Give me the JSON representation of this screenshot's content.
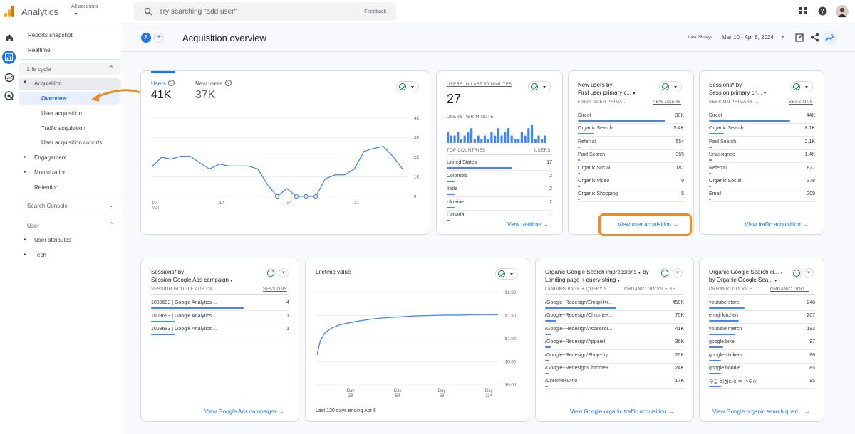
{
  "app": {
    "title": "Analytics",
    "account_label": "All accounts"
  },
  "search": {
    "placeholder": "Try searching \"add user\"",
    "feedback": "Feedback"
  },
  "sidebar": {
    "reports_snapshot": "Reports snapshot",
    "realtime": "Realtime",
    "lifecycle": "Life cycle",
    "acquisition": "Acquisition",
    "overview": "Overview",
    "user_acquisition": "User acquisition",
    "traffic_acquisition": "Traffic acquisition",
    "user_acquisition_cohorts": "User acquisition cohorts",
    "engagement": "Engagement",
    "monetization": "Monetization",
    "retention": "Retention",
    "search_console": "Search Console",
    "user": "User",
    "user_attributes": "User attributes",
    "tech": "Tech"
  },
  "header": {
    "avatar_letter": "A",
    "title": "Acquisition overview",
    "period_label": "Last 28 days",
    "date_range": "Mar 10 - Apr 6, 2024"
  },
  "users_card": {
    "users_label": "Users",
    "users_value": "41K",
    "new_users_label": "New users",
    "new_users_value": "37K",
    "y_ticks": [
      "4K",
      "3K",
      "2K",
      "1K",
      "0"
    ],
    "x_ticks": [
      "10",
      "17",
      "24",
      "31"
    ],
    "x_month": "Mar",
    "chart_data": {
      "type": "line",
      "x": [
        "Mar 10",
        "Mar 11",
        "Mar 12",
        "Mar 13",
        "Mar 14",
        "Mar 15",
        "Mar 16",
        "Mar 17",
        "Mar 18",
        "Mar 19",
        "Mar 20",
        "Mar 21",
        "Mar 22",
        "Mar 23",
        "Mar 24",
        "Mar 25",
        "Mar 26",
        "Mar 27",
        "Mar 28",
        "Mar 29",
        "Mar 30",
        "Mar 31",
        "Apr 1",
        "Apr 2",
        "Apr 3",
        "Apr 4",
        "Apr 5"
      ],
      "series": [
        {
          "name": "Users",
          "values": [
            1500,
            2000,
            1900,
            2050,
            2050,
            1700,
            1400,
            1650,
            1550,
            1550,
            1550,
            1400,
            600,
            0,
            400,
            0,
            0,
            0,
            900,
            1100,
            1100,
            1400,
            2300,
            2450,
            2550,
            2050,
            1400
          ]
        }
      ],
      "ylim": [
        0,
        4000
      ]
    }
  },
  "realtime_card": {
    "heading": "USERS IN LAST 30 MINUTES",
    "value": "27",
    "per_minute": "USERS PER MINUTE",
    "per_minute_bars": [
      3,
      2,
      2,
      3,
      1,
      2,
      3,
      4,
      1,
      2,
      1,
      2,
      1,
      3,
      2,
      4,
      2,
      3,
      4,
      2,
      1,
      1,
      3,
      2,
      4,
      5,
      1,
      2,
      1,
      2
    ],
    "countries_label": "TOP COUNTRIES",
    "users_label": "USERS",
    "rows": [
      {
        "label": "United States",
        "value": "17"
      },
      {
        "label": "Colombia",
        "value": "2"
      },
      {
        "label": "India",
        "value": "2"
      },
      {
        "label": "Ukraine",
        "value": "2"
      },
      {
        "label": "Canada",
        "value": "1"
      }
    ],
    "link": "View realtime"
  },
  "newusers_card": {
    "title1": "New users by",
    "title2": "First user primary c...",
    "col1": "FIRST USER PRIMA...",
    "col2": "NEW USERS",
    "rows": [
      {
        "label": "Direct",
        "value": "30K"
      },
      {
        "label": "Organic Search",
        "value": "5.4K"
      },
      {
        "label": "Referral",
        "value": "554"
      },
      {
        "label": "Paid Search",
        "value": "365"
      },
      {
        "label": "Organic Social",
        "value": "187"
      },
      {
        "label": "Organic Video",
        "value": "9"
      },
      {
        "label": "Organic Shopping",
        "value": "5"
      }
    ],
    "link": "View user acquisition"
  },
  "sessions_card": {
    "title1": "Sessions* by",
    "title2": "Session primary ch...",
    "col1": "SESSION PRIMARY ...",
    "col2": "SESSIONS",
    "rows": [
      {
        "label": "Direct",
        "value": "44K"
      },
      {
        "label": "Organic Search",
        "value": "8.1K"
      },
      {
        "label": "Paid Search",
        "value": "2.1K"
      },
      {
        "label": "Unassigned",
        "value": "1.4K"
      },
      {
        "label": "Referral",
        "value": "827"
      },
      {
        "label": "Organic Social",
        "value": "378"
      },
      {
        "label": "Email",
        "value": "209"
      }
    ],
    "link": "View traffic acquisition"
  },
  "ads_card": {
    "title1": "Sessions* by",
    "title2": "Session Google Ads campaign",
    "col1": "SESSION GOOGLE ADS CA...",
    "col2": "SESSIONS",
    "rows": [
      {
        "label": "1009693 | Google Analytics ...",
        "value": "4"
      },
      {
        "label": "1009693 | Google Analytics ...",
        "value": "1"
      },
      {
        "label": "1009693 | Google Analytics ...",
        "value": "1"
      }
    ],
    "link": "View Google Ads campaigns"
  },
  "ltv_card": {
    "title": "Lifetime value",
    "y_ticks": [
      "$2.00",
      "$1.50",
      "$1.00",
      "$0.50",
      "$0.00"
    ],
    "x_ticks": [
      [
        "Day",
        "23"
      ],
      [
        "Day",
        "54"
      ],
      [
        "Day",
        "83"
      ],
      [
        "Day",
        "114"
      ]
    ],
    "footer": "Last 120 days ending Apr 6",
    "chart_data": {
      "type": "line",
      "x": [
        1,
        3,
        6,
        10,
        15,
        20,
        28,
        36,
        45,
        55,
        65,
        75,
        85,
        95,
        105,
        115,
        120
      ],
      "series": [
        {
          "name": "Lifetime value",
          "values": [
            0.65,
            0.95,
            1.12,
            1.22,
            1.29,
            1.33,
            1.38,
            1.42,
            1.45,
            1.47,
            1.49,
            1.5,
            1.51,
            1.51,
            1.52,
            1.52,
            1.52
          ]
        }
      ],
      "ylim": [
        0,
        2.0
      ]
    }
  },
  "organic_card": {
    "title1": "Organic Google Search impressions",
    "title1_suffix": "by",
    "title2": "Landing page + query string",
    "col1": "LANDING PAGE + QUERY S...",
    "col2": "ORGANIC GOOGLE SE...",
    "rows": [
      {
        "label": "/Google+Redesign/Emoji+Ki...",
        "value": "458K"
      },
      {
        "label": "/Google+Redesign/Chrome+...",
        "value": "75K"
      },
      {
        "label": "/Google+Redesign/Accessor...",
        "value": "41K"
      },
      {
        "label": "/Google+Redesign/Apparel",
        "value": "36K"
      },
      {
        "label": "/Google+Redesign/Shop+by...",
        "value": "26K"
      },
      {
        "label": "/Google+Redesign/Chrome+...",
        "value": "24K"
      },
      {
        "label": "/Chrome+Dino",
        "value": "17K"
      }
    ],
    "link": "View Google organic traffic acquisition"
  },
  "clicks_card": {
    "title1": "Organic Google Search cl...",
    "title2": "by Organic Google Sea...",
    "col1": "ORGANIC GOOGLE ...",
    "col2": "ORGANIC GOO...",
    "rows": [
      {
        "label": "youtube store",
        "value": "248"
      },
      {
        "label": "emoji kitchen",
        "value": "207"
      },
      {
        "label": "youtube merch",
        "value": "183"
      },
      {
        "label": "google bike",
        "value": "97"
      },
      {
        "label": "google stickers",
        "value": "86"
      },
      {
        "label": "google hoodie",
        "value": "85"
      },
      {
        "label": "구글 머천다이즈 스토어",
        "value": "85"
      }
    ],
    "link": "View Google organic search queri..."
  },
  "colors": {
    "accent": "#1a73e8",
    "highlight": "#f28b1c",
    "chart_blue": "#4285f4"
  }
}
